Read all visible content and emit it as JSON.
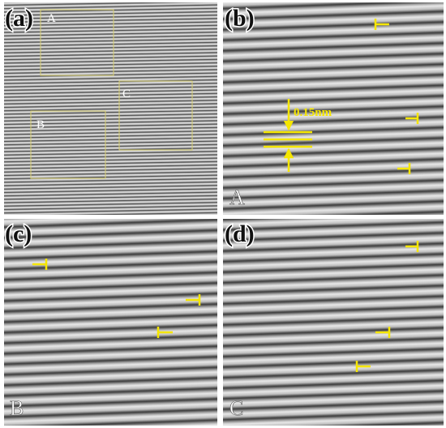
{
  "panels": [
    {
      "label": "(a)",
      "boxes": [
        "A",
        "B",
        "C"
      ]
    },
    {
      "label": "(b)",
      "scale": "0.15nm",
      "region": "A"
    },
    {
      "label": "(c)",
      "region": "B"
    },
    {
      "label": "(d)",
      "region": "C"
    }
  ]
}
